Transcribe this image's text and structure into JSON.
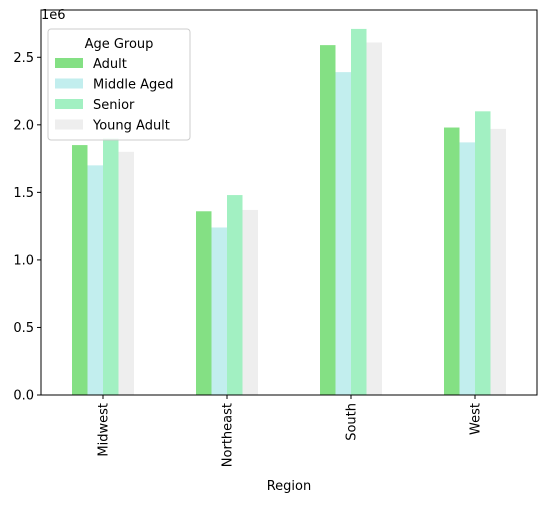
{
  "chart_data": {
    "type": "bar",
    "title": "",
    "xlabel": "Region",
    "ylabel": "",
    "scale_label": "1e6",
    "categories": [
      "Midwest",
      "Northeast",
      "South",
      "West"
    ],
    "series": [
      {
        "name": "Adult",
        "color": "#84e084",
        "values": [
          1850000,
          1360000,
          2590000,
          1980000
        ]
      },
      {
        "name": "Middle Aged",
        "color": "#c2eeee",
        "values": [
          1700000,
          1240000,
          2390000,
          1870000
        ]
      },
      {
        "name": "Senior",
        "color": "#a2f0c2",
        "values": [
          1900000,
          1480000,
          2710000,
          2100000
        ]
      },
      {
        "name": "Young Adult",
        "color": "#eeeeee",
        "values": [
          1800000,
          1370000,
          2610000,
          1970000
        ]
      }
    ],
    "yticks": [
      "0.0",
      "0.5",
      "1.0",
      "1.5",
      "2.0",
      "2.5"
    ],
    "ylim": [
      0,
      2850000
    ],
    "legend": {
      "title": "Age Group",
      "placement": "top-left"
    },
    "grid": false
  }
}
